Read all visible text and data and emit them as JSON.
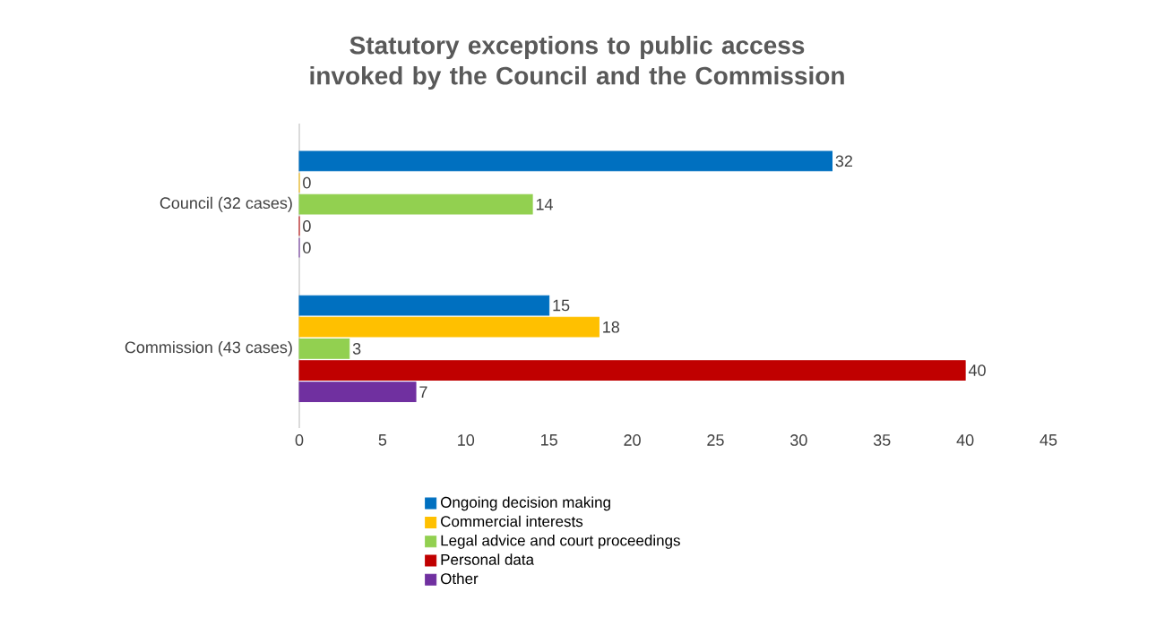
{
  "chart_data": {
    "type": "bar",
    "orientation": "horizontal",
    "title": "Statutory exceptions to public access invoked by the Council and the Commission",
    "categories": [
      "Council (32 cases)",
      "Commission (43 cases)"
    ],
    "series": [
      {
        "name": "Ongoing decision making",
        "color": "#0070c0",
        "values": [
          32,
          15
        ]
      },
      {
        "name": "Commercial interests",
        "color": "#ffc000",
        "values": [
          0,
          18
        ]
      },
      {
        "name": "Legal advice and court proceedings",
        "color": "#92d050",
        "values": [
          14,
          3
        ]
      },
      {
        "name": "Personal data",
        "color": "#c00000",
        "values": [
          0,
          40
        ]
      },
      {
        "name": "Other",
        "color": "#7030a0",
        "values": [
          0,
          7
        ]
      }
    ],
    "xlim": [
      0,
      45
    ],
    "xticks": [
      0,
      5,
      10,
      15,
      20,
      25,
      30,
      35,
      40,
      45
    ],
    "data_labels": true,
    "legend": "bottom",
    "grid": false
  }
}
